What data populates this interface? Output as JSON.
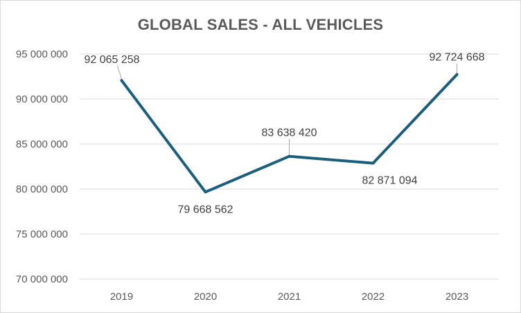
{
  "chart_data": {
    "type": "line",
    "title": "GLOBAL SALES - ALL VEHICLES",
    "xlabel": "",
    "ylabel": "",
    "categories": [
      "2019",
      "2020",
      "2021",
      "2022",
      "2023"
    ],
    "series": [
      {
        "values": [
          92065258,
          79668562,
          83638420,
          82871094,
          92724668
        ],
        "labels": [
          "92 065 258",
          "79 668 562",
          "83 638 420",
          "82 871 094",
          "92 724 668"
        ]
      }
    ],
    "ylim": [
      70000000,
      95000000
    ],
    "yticks": [
      70000000,
      75000000,
      80000000,
      85000000,
      90000000,
      95000000
    ],
    "ytick_labels": [
      "70 000 000",
      "75 000 000",
      "80 000 000",
      "85 000 000",
      "90 000 000",
      "95 000 000"
    ],
    "grid": true,
    "legend": "none",
    "colors": {
      "series": "#1b5e7c"
    }
  }
}
